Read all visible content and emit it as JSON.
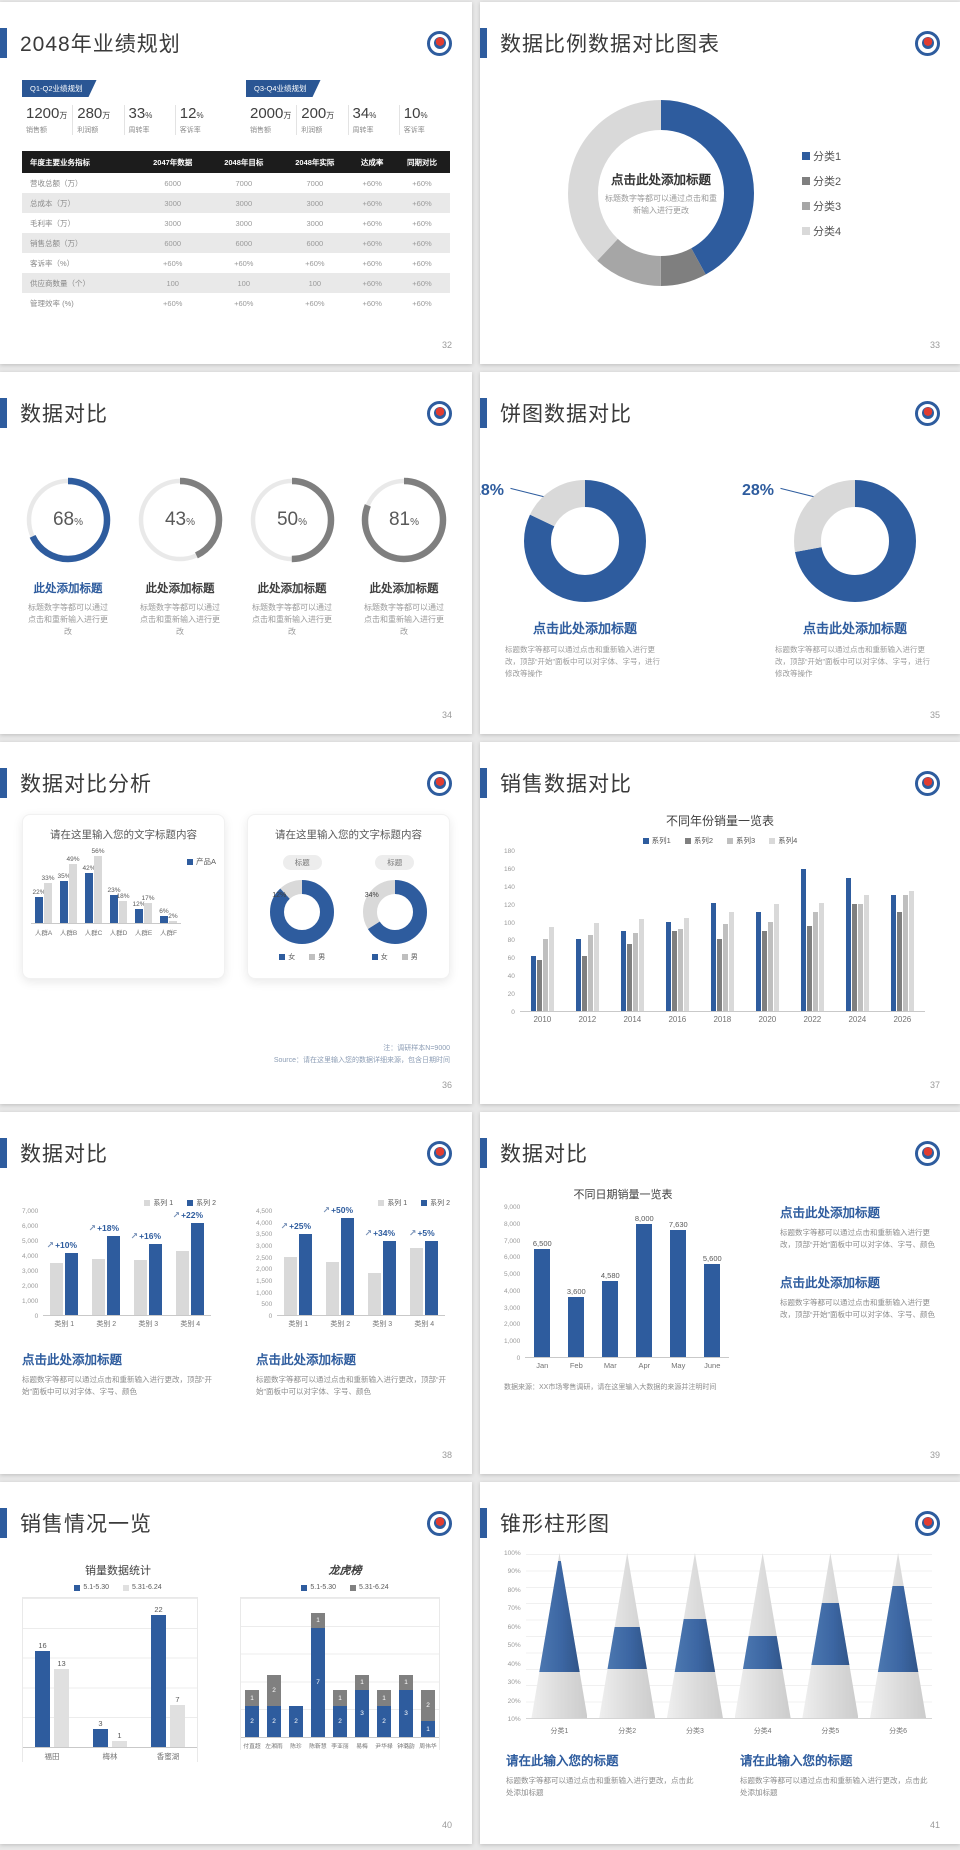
{
  "colors": {
    "blue": "#2e5c9e",
    "darkgray": "#7f7f7f",
    "midgray": "#bfbfbf",
    "lightgray": "#d9d9d9"
  },
  "slides": {
    "s32": {
      "title": "2048年业绩规划",
      "page": "32",
      "groups": [
        {
          "badge": "Q1-Q2业绩规划",
          "stats": [
            {
              "v": "1200",
              "u": "万",
              "l": "销售额"
            },
            {
              "v": "280",
              "u": "万",
              "l": "利润额"
            },
            {
              "v": "33",
              "u": "%",
              "l": "周转率"
            },
            {
              "v": "12",
              "u": "%",
              "l": "客诉率"
            }
          ]
        },
        {
          "badge": "Q3-Q4业绩规划",
          "stats": [
            {
              "v": "2000",
              "u": "万",
              "l": "销售额"
            },
            {
              "v": "200",
              "u": "万",
              "l": "利润额"
            },
            {
              "v": "34",
              "u": "%",
              "l": "周转率"
            },
            {
              "v": "10",
              "u": "%",
              "l": "客诉率"
            }
          ]
        }
      ],
      "table": {
        "headers": [
          "年度主要业务指标",
          "2047年数据",
          "2048年目标",
          "2048年实际",
          "达成率",
          "同期对比"
        ],
        "rows": [
          [
            "营收总额（万）",
            "6000",
            "7000",
            "7000",
            "+60%",
            "+60%"
          ],
          [
            "总成本（万）",
            "3000",
            "3000",
            "3000",
            "+60%",
            "+60%"
          ],
          [
            "毛利率（万）",
            "3000",
            "3000",
            "3000",
            "+60%",
            "+60%"
          ],
          [
            "销售总额（万）",
            "6000",
            "6000",
            "6000",
            "+60%",
            "+60%"
          ],
          [
            "客诉率（%）",
            "+60%",
            "+60%",
            "+60%",
            "+60%",
            "+60%"
          ],
          [
            "供应商数量（个）",
            "100",
            "100",
            "100",
            "+60%",
            "+60%"
          ],
          [
            "管理效率 (%)",
            "+60%",
            "+60%",
            "+60%",
            "+60%",
            "+60%"
          ]
        ]
      }
    },
    "s33": {
      "title": "数据比例数据对比图表",
      "page": "33",
      "center_title": "点击此处添加标题",
      "center_caption": "标题数字等都可以通过点击和重新输入进行更改",
      "donut": {
        "segments": [
          {
            "label": "分类1",
            "pct": 42,
            "color": "#2e5c9e"
          },
          {
            "label": "分类2",
            "pct": 8,
            "color": "#7f7f7f"
          },
          {
            "label": "分类3",
            "pct": 12,
            "color": "#a6a6a6"
          },
          {
            "label": "分类4",
            "pct": 38,
            "color": "#d9d9d9"
          }
        ]
      },
      "legend": [
        {
          "label": "分类1",
          "color": "#2e5c9e"
        },
        {
          "label": "分类2",
          "color": "#7f7f7f"
        },
        {
          "label": "分类3",
          "color": "#a6a6a6"
        },
        {
          "label": "分类4",
          "color": "#d9d9d9"
        }
      ]
    },
    "s34": {
      "title": "数据对比",
      "page": "34",
      "item_title": "此处添加标题",
      "item_caption": "标题数字等都可以通过点击和重新输入进行更改",
      "gauges": [
        {
          "pct": 68,
          "color": "#2e5c9e",
          "title_color": "#2e5c9e"
        },
        {
          "pct": 43,
          "color": "#7f7f7f"
        },
        {
          "pct": 50,
          "color": "#7f7f7f"
        },
        {
          "pct": 81,
          "color": "#7f7f7f"
        }
      ]
    },
    "s35": {
      "title": "饼图数据对比",
      "page": "35",
      "item_title": "点击此处添加标题",
      "item_caption": "标题数字等都可以通过点击和重新输入进行更改，顶部“开始”面板中可以对字体、字号，进行修改等操作",
      "pies": [
        {
          "pct": 18
        },
        {
          "pct": 28
        }
      ]
    },
    "s36": {
      "title": "数据对比分析",
      "page": "36",
      "note1": "注：调研样本N=9000",
      "note2": "Source：请在这里输入您的数据详细来源，包含日期时间",
      "card1": {
        "title": "请在这里输入您的文字标题内容",
        "chart": {
          "ymax": 60,
          "labels": "all-pct",
          "legendPos": "right",
          "legend": [
            {
              "label": "产品A",
              "color": "#2e5c9e"
            }
          ],
          "categories": [
            "人群A",
            "人群B",
            "人群C",
            "人群D",
            "人群E",
            "人群F"
          ],
          "series": [
            {
              "name": "产品A",
              "color": "#2e5c9e",
              "values": [
                22,
                35,
                42,
                23,
                12,
                6
              ]
            },
            {
              "name": "产品B",
              "color": "#d9d9d9",
              "values": [
                33,
                49,
                56,
                18,
                17,
                2
              ]
            }
          ]
        }
      },
      "card2": {
        "title": "请在这里输入您的文字标题内容",
        "pill": "标题",
        "minis": [
          {
            "pct": 12
          },
          {
            "pct": 34
          }
        ],
        "legend": [
          {
            "label": "女",
            "color": "#2e5c9e"
          },
          {
            "label": "男",
            "color": "#bfbfbf"
          }
        ]
      }
    },
    "s37": {
      "title": "销售数据对比",
      "page": "37",
      "chart": {
        "title": "不同年份销量一览表",
        "legend": [
          {
            "label": "系列1",
            "color": "#2e5c9e"
          },
          {
            "label": "系列2",
            "color": "#7f7f7f"
          },
          {
            "label": "系列3",
            "color": "#bfbfbf"
          },
          {
            "label": "系列4",
            "color": "#d9d9d9"
          }
        ],
        "ymax": 180,
        "yticks": [
          "180",
          "160",
          "140",
          "120",
          "100",
          "80",
          "60",
          "40",
          "20",
          "0"
        ],
        "categories": [
          "2010",
          "2012",
          "2014",
          "2016",
          "2018",
          "2020",
          "2022",
          "2024",
          "2026"
        ],
        "series": [
          {
            "name": "系列1",
            "color": "#2e5c9e",
            "values": [
              62,
              81,
              90,
              100,
              121,
              111,
              160,
              150,
              130
            ]
          },
          {
            "name": "系列2",
            "color": "#7f7f7f",
            "values": [
              57,
              62,
              75,
              90,
              81,
              90,
              96,
              120,
              111
            ]
          },
          {
            "name": "系列3",
            "color": "#bfbfbf",
            "values": [
              81,
              86,
              88,
              92,
              98,
              100,
              111,
              120,
              130
            ]
          },
          {
            "name": "系列4",
            "color": "#d9d9d9",
            "values": [
              95,
              99,
              103,
              105,
              111,
              120,
              122,
              130,
              135
            ]
          }
        ]
      }
    },
    "s38": {
      "title": "数据对比",
      "page": "38",
      "charts": [
        {
          "title": "点击此处添加标题",
          "caption": "标题数字等都可以通过点击和重新输入进行更改，顶部“开始”面板中可以对字体、字号、颜色",
          "chart": {
            "legend": [
              {
                "label": "系列 1",
                "color": "#d9d9d9"
              },
              {
                "label": "系列 2",
                "color": "#2e5c9e"
              }
            ],
            "legendAlign": "right",
            "ymax": 7000,
            "yticks": [
              "7,000",
              "6,000",
              "5,000",
              "4,000",
              "3,000",
              "2,000",
              "1,000",
              "0"
            ],
            "categories": [
              "类别 1",
              "类别 2",
              "类别 3",
              "类别 4"
            ],
            "ann": [
              "+10%",
              "+18%",
              "+16%",
              "+22%"
            ],
            "series": [
              {
                "name": "系列 1",
                "color": "#d9d9d9",
                "values": [
                  3500,
                  3800,
                  3700,
                  4300
                ]
              },
              {
                "name": "系列 2",
                "color": "#2e5c9e",
                "values": [
                  4200,
                  5300,
                  4800,
                  6200
                ]
              }
            ]
          }
        },
        {
          "title": "点击此处添加标题",
          "caption": "标题数字等都可以通过点击和重新输入进行更改，顶部“开始”面板中可以对字体、字号、颜色",
          "chart": {
            "legend": [
              {
                "label": "系列 1",
                "color": "#d9d9d9"
              },
              {
                "label": "系列 2",
                "color": "#2e5c9e"
              }
            ],
            "legendAlign": "right",
            "ymax": 4500,
            "yticks": [
              "4,500",
              "4,000",
              "3,500",
              "3,000",
              "2,500",
              "2,000",
              "1,500",
              "1,000",
              "500",
              "0"
            ],
            "categories": [
              "类别 1",
              "类别 2",
              "类别 3",
              "类别 4"
            ],
            "ann": [
              "+25%",
              "+50%",
              "+34%",
              "+5%"
            ],
            "series": [
              {
                "name": "系列 1",
                "color": "#d9d9d9",
                "values": [
                  2500,
                  2300,
                  1800,
                  2900
                ]
              },
              {
                "name": "系列 2",
                "color": "#2e5c9e",
                "values": [
                  3500,
                  4200,
                  3200,
                  3200
                ]
              }
            ]
          }
        }
      ]
    },
    "s39": {
      "title": "数据对比",
      "page": "39",
      "note": "数据来源：XX市场零售调研，请在这里输入大数据的来源并注明时间",
      "chart": {
        "title": "不同日期销量一览表",
        "ymax": 9000,
        "labels": "all",
        "yticks": [
          "9,000",
          "8,000",
          "7,000",
          "6,000",
          "5,000",
          "4,000",
          "3,000",
          "2,000",
          "1,000",
          "0"
        ],
        "categories": [
          "Jan",
          "Feb",
          "Mar",
          "Apr",
          "May",
          "June"
        ],
        "series": [
          {
            "name": "销量",
            "color": "#2e5c9e",
            "values": [
              6500,
              3600,
              4580,
              8000,
              7630,
              5600
            ]
          }
        ]
      },
      "blocks": [
        {
          "title": "点击此处添加标题",
          "caption": "标题数字等都可以通过点击和重新输入进行更改，顶部“开始”面板中可以对字体、字号、颜色"
        },
        {
          "title": "点击此处添加标题",
          "caption": "标题数字等都可以通过点击和重新输入进行更改，顶部“开始”面板中可以对字体、字号、颜色"
        }
      ]
    },
    "s40": {
      "title": "销售情况一览",
      "page": "40",
      "charts": [
        {
          "title": "销量数据统计",
          "legend": [
            {
              "label": "5.1-5.30",
              "color": "#2e5c9e"
            },
            {
              "label": "5.31-6.24",
              "color": "#e0e0e0"
            }
          ],
          "ymax": 25,
          "labels": "all",
          "grid": true,
          "boxed": true,
          "categories": [
            "福田",
            "梅林",
            "香蜜湖"
          ],
          "series": [
            {
              "name": "5.1-5.30",
              "color": "#2e5c9e",
              "values": [
                16,
                3,
                22
              ]
            },
            {
              "name": "5.31-6.24",
              "color": "#e0e0e0",
              "values": [
                13,
                1,
                7
              ]
            }
          ]
        },
        {
          "title": "龙虎榜",
          "legend": [
            {
              "label": "5.1-5.30",
              "color": "#2e5c9e"
            },
            {
              "label": "5.31-6.24",
              "color": "#808080"
            }
          ],
          "ymax": 9,
          "stacked": true,
          "labels": "inside",
          "grid": true,
          "boxed": true,
          "categories": [
            "付直超",
            "左湘雨",
            "陈珍",
            "陈靳慧",
            "李亚丽",
            "易梅",
            "尹华禄",
            "钟璐韵",
            "周伟华"
          ],
          "series": [
            {
              "name": "5.1-5.30",
              "color": "#2e5c9e",
              "values": [
                2,
                2,
                2,
                7,
                2,
                3,
                2,
                3,
                1
              ]
            },
            {
              "name": "5.31-6.24",
              "color": "#808080",
              "values": [
                1,
                2,
                0,
                1,
                1,
                1,
                1,
                1,
                2
              ]
            }
          ]
        }
      ]
    },
    "s41": {
      "title": "锥形柱形图",
      "page": "41",
      "cones": {
        "yticks": [
          "100%",
          "90%",
          "80%",
          "70%",
          "60%",
          "50%",
          "40%",
          "30%",
          "20%",
          "10%"
        ],
        "categories": [
          "分类1",
          "分类2",
          "分类3",
          "分类4",
          "分类5",
          "分类6"
        ],
        "tops": [
          95,
          55,
          60,
          50,
          70,
          80
        ],
        "bottoms": [
          28,
          30,
          28,
          30,
          32,
          28
        ]
      },
      "texts": [
        {
          "title": "请在此输入您的标题",
          "caption": "标题数字等都可以通过点击和重新输入进行更改，点击此处添加标题"
        },
        {
          "title": "请在此输入您的标题",
          "caption": "标题数字等都可以通过点击和重新输入进行更改，点击此处添加标题"
        }
      ]
    }
  }
}
